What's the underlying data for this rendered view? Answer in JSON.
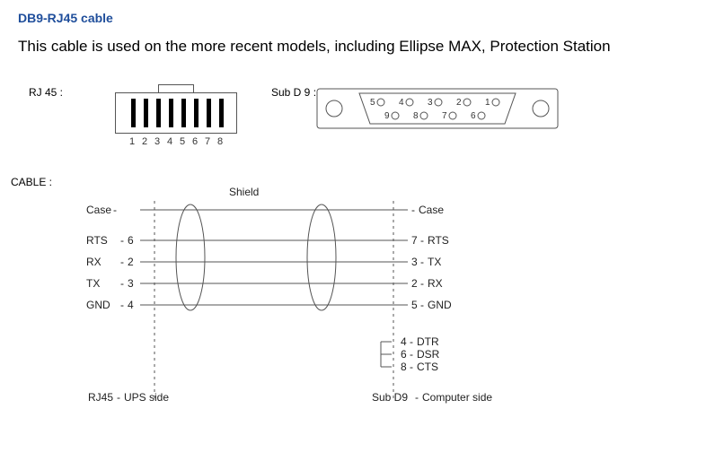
{
  "title": "DB9-RJ45 cable",
  "description": "This cable is used on the more recent models, including Ellipse MAX, Protection Station",
  "rj45": {
    "label": "RJ 45 :",
    "pins": [
      "1",
      "2",
      "3",
      "4",
      "5",
      "6",
      "7",
      "8"
    ]
  },
  "db9": {
    "label": "Sub D 9 :",
    "top_pins": [
      "5",
      "4",
      "3",
      "2",
      "1"
    ],
    "bottom_pins": [
      "9",
      "8",
      "7",
      "6"
    ]
  },
  "cable": {
    "label": "CABLE :"
  },
  "shield_label": "Shield",
  "left": {
    "case": "Case",
    "signals": [
      {
        "name": "RTS",
        "pin": "6"
      },
      {
        "name": "RX",
        "pin": "2"
      },
      {
        "name": "TX",
        "pin": "3"
      },
      {
        "name": "GND",
        "pin": "4"
      }
    ],
    "side": "RJ45",
    "side_sub": "UPS side"
  },
  "right": {
    "case": "Case",
    "signals": [
      {
        "pin": "7",
        "name": "RTS"
      },
      {
        "pin": "3",
        "name": "TX"
      },
      {
        "pin": "2",
        "name": "RX"
      },
      {
        "pin": "5",
        "name": "GND"
      }
    ],
    "bridge": [
      {
        "pin": "4",
        "name": "DTR"
      },
      {
        "pin": "6",
        "name": "DSR"
      },
      {
        "pin": "8",
        "name": "CTS"
      }
    ],
    "side": "Sub D9",
    "side_sub": "Computer side"
  },
  "colors": {
    "title": "#1f4e9b",
    "line": "#555555",
    "text": "#222222"
  },
  "geom": {
    "ylines": [
      39,
      73,
      97,
      121,
      145
    ],
    "xL": 152,
    "xR": 418
  }
}
